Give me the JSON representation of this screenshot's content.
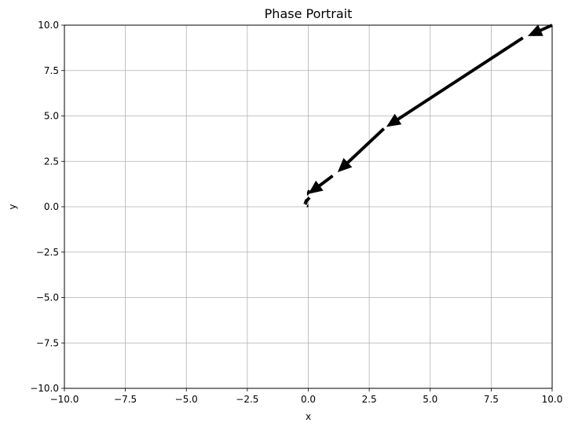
{
  "chart_data": {
    "type": "quiver",
    "title": "Phase Portrait",
    "xlabel": "x",
    "ylabel": "y",
    "xlim": [
      -10,
      10
    ],
    "ylim": [
      -10,
      10
    ],
    "grid": true,
    "xticks": [
      -10,
      -7.5,
      -5,
      -2.5,
      0,
      2.5,
      5,
      7.5,
      10
    ],
    "yticks": [
      -10,
      -7.5,
      -5,
      -2.5,
      0,
      2.5,
      5,
      7.5,
      10
    ],
    "xtick_labels": [
      "−10.0",
      "−7.5",
      "−5.0",
      "−2.5",
      "0.0",
      "2.5",
      "5.0",
      "7.5",
      "10.0"
    ],
    "ytick_labels": [
      "−10.0",
      "−7.5",
      "−5.0",
      "−2.5",
      "0.0",
      "2.5",
      "5.0",
      "7.5",
      "10.0"
    ],
    "arrow_color": "#000000",
    "grid_color": "#b0b0b0",
    "arrows": [
      {
        "x": 10.0,
        "y": 10.0,
        "dx": -1.0,
        "dy": -0.6
      },
      {
        "x": 8.8,
        "y": 9.3,
        "dx": -5.6,
        "dy": -4.9
      },
      {
        "x": 3.1,
        "y": 4.3,
        "dx": -1.9,
        "dy": -2.4
      },
      {
        "x": 1.0,
        "y": 1.7,
        "dx": -1.0,
        "dy": -1.0
      },
      {
        "x": 0.05,
        "y": 0.9,
        "dx": -0.1,
        "dy": -0.3
      },
      {
        "x": 0.05,
        "y": 0.5,
        "dx": -0.25,
        "dy": -0.35
      },
      {
        "x": -0.1,
        "y": 0.2,
        "dx": 0.05,
        "dy": -0.12
      },
      {
        "x": -0.05,
        "y": 0.05,
        "dx": 0.08,
        "dy": -0.04
      }
    ]
  }
}
